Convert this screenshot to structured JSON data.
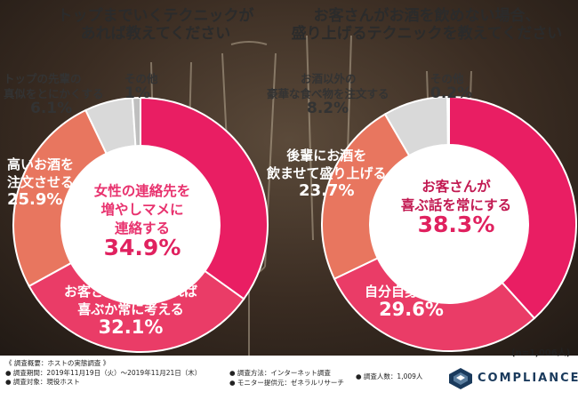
{
  "chart_data": [
    {
      "type": "pie",
      "title": "トップまでいくテクニックがあれば教えてください",
      "title_lines": [
        "トップまでいくテクニックが",
        "あれば教えてください"
      ],
      "slices": [
        {
          "label": "女性の連絡先を増やしマメに連絡する",
          "lines": [
            "女性の連絡先を",
            "増やしマメに",
            "連絡する"
          ],
          "value": 34.9,
          "color": "#e91e63"
        },
        {
          "label": "お客さんが何をすれば喜ぶか常に考える",
          "lines": [
            "お客さんが何をすれば",
            "喜ぶか常に考える"
          ],
          "value": 32.1,
          "color": "#ea3c67"
        },
        {
          "label": "高いお酒を注文させる",
          "lines": [
            "高いお酒を",
            "注文させる"
          ],
          "value": 25.9,
          "color": "#e8765f"
        },
        {
          "label": "トップの先輩の真似をとにかくする",
          "lines": [
            "トップの先輩の",
            "真似をとにかくする"
          ],
          "value": 6.1,
          "color": "#d9d9d9"
        },
        {
          "label": "その他",
          "lines": [
            "その他"
          ],
          "value": 1.0,
          "color": "#bfbfbf"
        }
      ]
    },
    {
      "type": "pie",
      "title": "お客さんがお酒を飲めない場合、盛り上げるテクニックを教えてください",
      "title_lines": [
        "お客さんがお酒を飲めない場合、",
        "盛り上げるテクニックを教えてください"
      ],
      "slices": [
        {
          "label": "お客さんが喜ぶ話を常にする",
          "lines": [
            "お客さんが",
            "喜ぶ話を常にする"
          ],
          "value": 38.3,
          "color": "#e91e63"
        },
        {
          "label": "自分自身が飲む",
          "lines": [
            "自分自身が飲む"
          ],
          "value": 29.6,
          "color": "#ea3c67"
        },
        {
          "label": "後輩にお酒を飲ませて盛り上げる",
          "lines": [
            "後輩にお酒を",
            "飲ませて盛り上げる"
          ],
          "value": 23.7,
          "color": "#e8765f"
        },
        {
          "label": "お酒以外の豪華な食べ物を注文する",
          "lines": [
            "お酒以外の",
            "豪華な食べ物を注文する"
          ],
          "value": 8.2,
          "color": "#d9d9d9"
        },
        {
          "label": "その他",
          "lines": [
            "その他"
          ],
          "value": 0.2,
          "color": "#bfbfbf"
        }
      ]
    }
  ],
  "sample_note": "(n=1,006人)",
  "footer": {
    "survey_overview": "《 調査概要：ホストの実態調査 》",
    "period": "● 調査期間：2019年11月19日（火）～2019年11月21日（木）",
    "target": "● 調査対象：現役ホスト",
    "method": "● 調査方法：インターネット調査",
    "provider": "● モニター提供元：ゼネラルリサーチ",
    "count": "● 調査人数：1,009人"
  },
  "brand": {
    "name": "COMPLIANCE",
    "color": "#1a3a5c"
  }
}
